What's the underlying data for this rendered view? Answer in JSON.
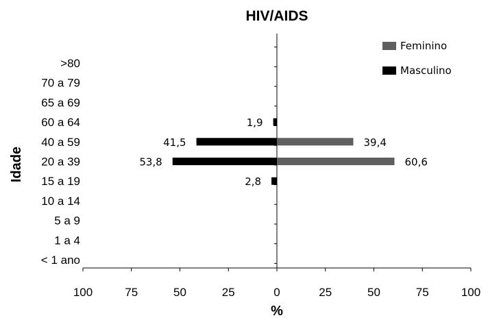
{
  "chart_data": {
    "type": "bar",
    "orientation": "horizontal-diverging",
    "title": "HIV/AIDS",
    "xlabel": "%",
    "ylabel": "Idade",
    "xlim": [
      -100,
      100
    ],
    "x_ticks": [
      {
        "value": -100,
        "label": "100"
      },
      {
        "value": -75,
        "label": "75"
      },
      {
        "value": -50,
        "label": "50"
      },
      {
        "value": -25,
        "label": "25"
      },
      {
        "value": 0,
        "label": "0"
      },
      {
        "value": 25,
        "label": "25"
      },
      {
        "value": 50,
        "label": "50"
      },
      {
        "value": 75,
        "label": "75"
      },
      {
        "value": 100,
        "label": "100"
      }
    ],
    "categories": [
      ">80",
      "70 a 79",
      "65 a 69",
      "60 a 64",
      "40 a 59",
      "20 a 39",
      "15 a 19",
      "10 a 14",
      "5 a 9",
      "1 a 4",
      "< 1 ano"
    ],
    "series": [
      {
        "name": "Feminino",
        "color": "#5f5f5f",
        "side": "right",
        "values": [
          null,
          null,
          null,
          null,
          39.4,
          60.6,
          null,
          null,
          null,
          null,
          null
        ],
        "labels": [
          "",
          "",
          "",
          "",
          "39,4",
          "60,6",
          "",
          "",
          "",
          "",
          ""
        ]
      },
      {
        "name": "Masculino",
        "color": "#000000",
        "side": "left",
        "values": [
          null,
          null,
          null,
          1.9,
          41.5,
          53.8,
          2.8,
          null,
          null,
          null,
          null
        ],
        "labels": [
          "",
          "",
          "",
          "1,9",
          "41,5",
          "53,8",
          "2,8",
          "",
          "",
          "",
          ""
        ]
      }
    ],
    "legend": {
      "position": "top-right"
    },
    "grid": false
  }
}
